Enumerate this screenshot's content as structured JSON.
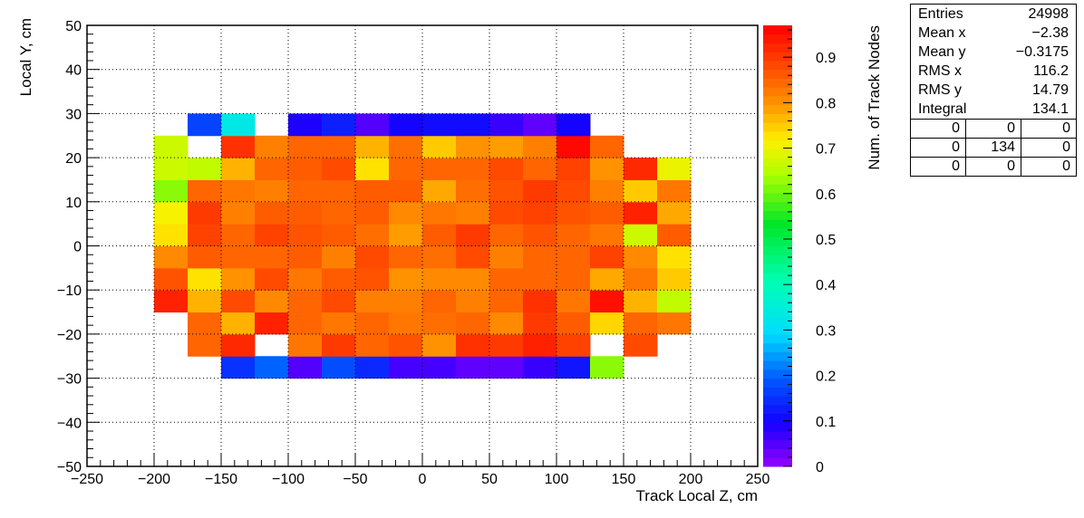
{
  "chart_data": {
    "type": "heatmap",
    "xlabel": "Track Local Z, cm",
    "ylabel": "Local Y, cm",
    "zlabel": "Num. of Track Nodes",
    "xlim": [
      -250,
      250
    ],
    "ylim": [
      -50,
      50
    ],
    "zlim": [
      0,
      0.97
    ],
    "x_ticks": [
      -250,
      -200,
      -150,
      -100,
      -50,
      0,
      50,
      100,
      150,
      200,
      250
    ],
    "x_tick_labels": [
      "−250",
      "−200",
      "−150",
      "−100",
      "−50",
      "0",
      "50",
      "100",
      "150",
      "200",
      "250"
    ],
    "y_ticks": [
      -50,
      -40,
      -30,
      -20,
      -10,
      0,
      10,
      20,
      30,
      40,
      50
    ],
    "y_tick_labels": [
      "−50",
      "−40",
      "−30",
      "−20",
      "−10",
      "0",
      "10",
      "20",
      "30",
      "40",
      "50"
    ],
    "z_ticks": [
      0,
      0.1,
      0.2,
      0.3,
      0.4,
      0.5,
      0.6,
      0.7,
      0.8,
      0.9
    ],
    "z_tick_labels": [
      "0",
      "0.1",
      "0.2",
      "0.3",
      "0.4",
      "0.5",
      "0.6",
      "0.7",
      "0.8",
      "0.9"
    ],
    "grid": true,
    "colormap": "rainbow (violet-blue-cyan-green-yellow-orange-red)",
    "bin_x_edges": [
      -200,
      -175,
      -150,
      -125,
      -100,
      -75,
      -50,
      -25,
      0,
      25,
      50,
      75,
      100,
      125,
      150,
      175,
      200
    ],
    "bin_y_edges": [
      -30,
      -25,
      -20,
      -15,
      -10,
      -5,
      0,
      5,
      10,
      15,
      20,
      25,
      30
    ],
    "z_values": [
      [
        null,
        null,
        0.15,
        0.2,
        0.05,
        0.18,
        0.14,
        0.06,
        0.06,
        0.04,
        0.04,
        0.07,
        0.12,
        0.62,
        null,
        null
      ],
      [
        null,
        0.85,
        0.92,
        null,
        0.83,
        0.9,
        0.85,
        0.87,
        0.8,
        0.91,
        0.9,
        0.93,
        0.89,
        null,
        0.88,
        null
      ],
      [
        null,
        0.85,
        0.77,
        0.93,
        0.85,
        0.83,
        0.85,
        0.83,
        0.84,
        0.85,
        0.81,
        0.9,
        0.86,
        0.74,
        0.85,
        0.83
      ],
      [
        0.93,
        0.77,
        0.88,
        0.81,
        0.85,
        0.88,
        0.82,
        0.82,
        0.85,
        0.82,
        0.85,
        0.91,
        0.83,
        0.95,
        0.77,
        0.66
      ],
      [
        0.87,
        0.73,
        0.8,
        0.88,
        0.83,
        0.86,
        0.87,
        0.8,
        0.81,
        0.81,
        0.85,
        0.85,
        0.85,
        0.78,
        0.83,
        0.75
      ],
      [
        0.81,
        0.86,
        0.85,
        0.85,
        0.86,
        0.82,
        0.88,
        0.85,
        0.84,
        0.88,
        0.82,
        0.85,
        0.85,
        0.89,
        0.81,
        0.73
      ],
      [
        0.73,
        0.89,
        0.85,
        0.89,
        0.87,
        0.86,
        0.84,
        0.79,
        0.86,
        0.9,
        0.85,
        0.87,
        0.85,
        0.83,
        0.67,
        0.86
      ],
      [
        0.71,
        0.9,
        0.82,
        0.86,
        0.86,
        0.85,
        0.86,
        0.81,
        0.83,
        0.82,
        0.88,
        0.89,
        0.87,
        0.86,
        0.93,
        0.78
      ],
      [
        0.62,
        0.85,
        0.83,
        0.82,
        0.85,
        0.85,
        0.86,
        0.86,
        0.78,
        0.84,
        0.87,
        0.9,
        0.88,
        0.82,
        0.75,
        0.83
      ],
      [
        0.67,
        0.66,
        0.77,
        0.85,
        0.86,
        0.88,
        0.73,
        0.85,
        0.85,
        0.85,
        0.88,
        0.85,
        0.89,
        0.8,
        0.92,
        0.7
      ],
      [
        0.67,
        null,
        0.91,
        0.82,
        0.85,
        0.85,
        0.77,
        0.84,
        0.75,
        0.8,
        0.79,
        0.82,
        0.96,
        0.85,
        null,
        null
      ],
      [
        null,
        0.17,
        0.33,
        null,
        0.09,
        0.13,
        0.05,
        0.1,
        0.11,
        0.11,
        0.07,
        0.04,
        0.1,
        null,
        null,
        null
      ]
    ]
  },
  "stats": {
    "rows": [
      {
        "label": "Entries",
        "value": "24998"
      },
      {
        "label": "Mean x",
        "value": "−2.38"
      },
      {
        "label": "Mean y",
        "value": "−0.3175"
      },
      {
        "label": "RMS x",
        "value": "116.2"
      },
      {
        "label": "RMS y",
        "value": "14.79"
      },
      {
        "label": "Integral",
        "value": "134.1"
      }
    ],
    "grid": [
      [
        "0",
        "0",
        "0"
      ],
      [
        "0",
        "134",
        "0"
      ],
      [
        "0",
        "0",
        "0"
      ]
    ]
  }
}
